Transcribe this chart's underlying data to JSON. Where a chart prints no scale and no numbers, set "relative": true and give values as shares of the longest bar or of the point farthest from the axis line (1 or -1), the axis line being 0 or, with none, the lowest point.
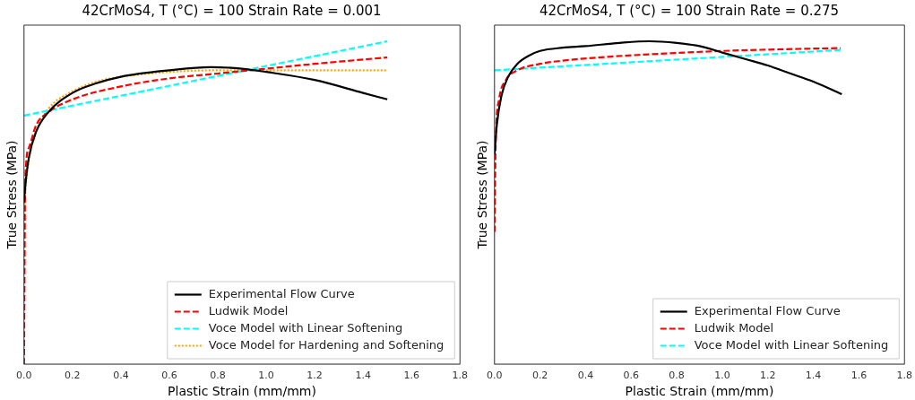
{
  "chart_data": [
    {
      "type": "line",
      "title": "42CrMoS4, T (°C) = 100 Strain Rate = 0.001",
      "xlabel": "Plastic Strain (mm/mm)",
      "ylabel": "True Stress (MPa)",
      "relative": true,
      "tick_labels": "x",
      "legend": "bottom right",
      "xlim": [
        0,
        1.8
      ],
      "xticks": [
        {
          "value": 0,
          "label": "0.0"
        },
        {
          "value": 0.2,
          "label": "0.2"
        },
        {
          "value": 0.4,
          "label": "0.4"
        },
        {
          "value": 0.6,
          "label": "0.6"
        },
        {
          "value": 0.8,
          "label": "0.8"
        },
        {
          "value": 1,
          "label": "1.0"
        },
        {
          "value": 1.2,
          "label": "1.2"
        },
        {
          "value": 1.4,
          "label": "1.4"
        },
        {
          "value": 1.6,
          "label": "1.6"
        },
        {
          "value": 1.8,
          "label": "1.8"
        }
      ],
      "series": [
        {
          "name": "Experimental Flow Curve",
          "color": "#000000",
          "line_style": "solid",
          "x": [
            0,
            0.005,
            0.02,
            0.05,
            0.1,
            0.2,
            0.3,
            0.4,
            0.6,
            0.77,
            0.9,
            1.0,
            1.2,
            1.4,
            1.5
          ],
          "values": [
            0.5,
            0.55,
            0.64,
            0.72,
            0.78,
            0.84,
            0.87,
            0.89,
            0.91,
            0.92,
            0.915,
            0.905,
            0.88,
            0.84,
            0.82
          ]
        },
        {
          "name": "Ludwik Model",
          "color": "#ff0000",
          "line_style": "dashed",
          "x": [
            0,
            0.005,
            0.02,
            0.05,
            0.1,
            0.2,
            0.4,
            0.6,
            0.8,
            1.0,
            1.2,
            1.5
          ],
          "values": [
            0,
            0.56,
            0.67,
            0.74,
            0.78,
            0.82,
            0.86,
            0.885,
            0.9,
            0.915,
            0.93,
            0.95
          ]
        },
        {
          "name": "Voce Model with Linear Softening",
          "color": "#00ffff",
          "line_style": "dashed",
          "x": [
            0,
            1.5
          ],
          "values": [
            0.77,
            1
          ]
        },
        {
          "name": "Voce Model for Hardening and Softening",
          "color": "#ffa500",
          "line_style": "dotted",
          "x": [
            0,
            0.005,
            0.02,
            0.05,
            0.1,
            0.2,
            0.3,
            0.4,
            0.6,
            0.8,
            1.0,
            1.5
          ],
          "values": [
            0.45,
            0.53,
            0.63,
            0.72,
            0.79,
            0.845,
            0.875,
            0.89,
            0.905,
            0.91,
            0.91,
            0.91
          ]
        }
      ]
    },
    {
      "type": "line",
      "title": "42CrMoS4, T (°C) = 100 Strain Rate = 0.275",
      "xlabel": "Plastic Strain (mm/mm)",
      "ylabel": "True Stress (MPa)",
      "relative": true,
      "tick_labels": "x",
      "legend": "bottom right",
      "xlim": [
        0,
        1.8
      ],
      "xticks": [
        {
          "value": 0,
          "label": "0.0"
        },
        {
          "value": 0.2,
          "label": "0.2"
        },
        {
          "value": 0.4,
          "label": "0.4"
        },
        {
          "value": 0.6,
          "label": "0.6"
        },
        {
          "value": 0.8,
          "label": "0.8"
        },
        {
          "value": 1,
          "label": "1.0"
        },
        {
          "value": 1.2,
          "label": "1.2"
        },
        {
          "value": 1.4,
          "label": "1.4"
        },
        {
          "value": 1.6,
          "label": "1.6"
        },
        {
          "value": 1.8,
          "label": "1.8"
        }
      ],
      "series": [
        {
          "name": "Experimental Flow Curve",
          "color": "#000000",
          "line_style": "solid",
          "x": [
            0,
            0.01,
            0.03,
            0.06,
            0.1,
            0.15,
            0.2,
            0.3,
            0.4,
            0.55,
            0.68,
            0.8,
            0.9,
            1.0,
            1.1,
            1.2,
            1.3,
            1.4,
            1.525
          ],
          "values": [
            0.65,
            0.74,
            0.83,
            0.89,
            0.93,
            0.955,
            0.97,
            0.98,
            0.985,
            0.995,
            1,
            0.995,
            0.985,
            0.965,
            0.945,
            0.925,
            0.9,
            0.875,
            0.836
          ]
        },
        {
          "name": "Ludwik Model",
          "color": "#ff0000",
          "line_style": "dashed",
          "x": [
            0,
            0.005,
            0.02,
            0.05,
            0.1,
            0.2,
            0.3,
            0.5,
            0.75,
            1.0,
            1.25,
            1.52
          ],
          "values": [
            0.41,
            0.68,
            0.82,
            0.88,
            0.91,
            0.93,
            0.94,
            0.952,
            0.962,
            0.97,
            0.975,
            0.979
          ]
        },
        {
          "name": "Voce Model with Linear Softening",
          "color": "#00ffff",
          "line_style": "dashed",
          "x": [
            0,
            1.52
          ],
          "values": [
            0.91,
            0.973
          ]
        }
      ]
    }
  ]
}
